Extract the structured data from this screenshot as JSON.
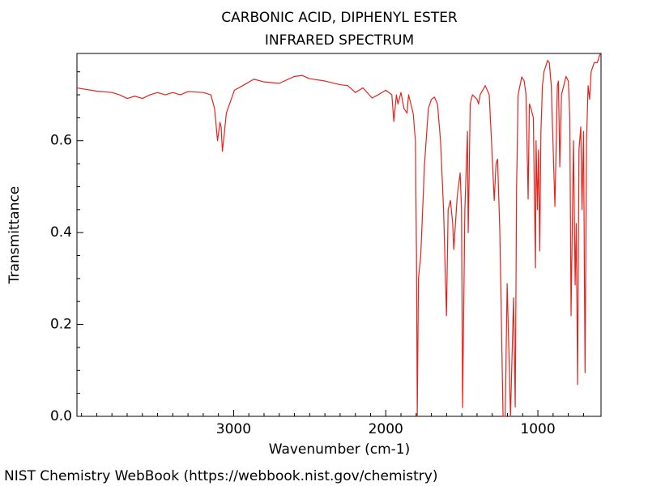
{
  "chart_data": {
    "type": "line",
    "title": "CARBONIC ACID, DIPHENYL ESTER",
    "subtitle": "INFRARED SPECTRUM",
    "x_label": "Wavenumber (cm-1)",
    "y_label": "Transmittance",
    "source": "NIST Chemistry WebBook (https://webbook.nist.gov/chemistry)",
    "color": "#e8221b",
    "xlim": [
      4030,
      585
    ],
    "ylim": [
      0,
      0.79
    ],
    "xticks": [
      3000,
      2000,
      1000
    ],
    "xticks_minor": [
      4000,
      3900,
      3800,
      3700,
      3600,
      3500,
      3400,
      3300,
      3200,
      3100,
      2900,
      2800,
      2700,
      2600,
      2500,
      2400,
      2300,
      2200,
      2100,
      1900,
      1800,
      1700,
      1600,
      1500,
      1400,
      1300,
      1200,
      1100,
      900,
      800,
      700
    ],
    "yticks": [
      {
        "value": 0,
        "label": "0.0"
      },
      0.2,
      0.4,
      0.6
    ],
    "yticks_minor": [
      0.05,
      0.1,
      0.15,
      0.25,
      0.3,
      0.35,
      0.45,
      0.5,
      0.55,
      0.65,
      0.7,
      0.75
    ],
    "x": [
      4030,
      3900,
      3800,
      3750,
      3700,
      3650,
      3600,
      3550,
      3500,
      3450,
      3400,
      3350,
      3300,
      3200,
      3150,
      3125,
      3106,
      3090,
      3082,
      3074,
      3060,
      3048,
      2995,
      2940,
      2867,
      2800,
      2700,
      2600,
      2550,
      2500,
      2400,
      2300,
      2250,
      2200,
      2150,
      2090,
      2050,
      2000,
      1960,
      1947,
      1930,
      1920,
      1900,
      1880,
      1860,
      1850,
      1820,
      1805,
      1798,
      1793,
      1785,
      1770,
      1745,
      1720,
      1700,
      1680,
      1660,
      1640,
      1620,
      1601,
      1590,
      1575,
      1560,
      1553,
      1530,
      1511,
      1502,
      1495,
      1480,
      1463,
      1458,
      1452,
      1445,
      1430,
      1400,
      1390,
      1380,
      1346,
      1320,
      1305,
      1287,
      1275,
      1265,
      1250,
      1229,
      1215,
      1202,
      1195,
      1180,
      1160,
      1149,
      1140,
      1130,
      1106,
      1090,
      1078,
      1064,
      1056,
      1045,
      1030,
      1016,
      1012,
      1003,
      996,
      988,
      980,
      970,
      960,
      936,
      925,
      912,
      888,
      872,
      865,
      856,
      845,
      830,
      815,
      800,
      790,
      782,
      766,
      755,
      748,
      739,
      730,
      718,
      710,
      700,
      690,
      680,
      670,
      660,
      650,
      630,
      610,
      590
    ],
    "values": [
      0.715,
      0.708,
      0.705,
      0.7,
      0.692,
      0.697,
      0.692,
      0.7,
      0.705,
      0.7,
      0.705,
      0.7,
      0.707,
      0.705,
      0.7,
      0.67,
      0.6,
      0.64,
      0.63,
      0.577,
      0.62,
      0.66,
      0.71,
      0.72,
      0.734,
      0.728,
      0.725,
      0.74,
      0.742,
      0.735,
      0.73,
      0.722,
      0.72,
      0.705,
      0.715,
      0.693,
      0.7,
      0.71,
      0.7,
      0.642,
      0.7,
      0.68,
      0.705,
      0.67,
      0.66,
      0.7,
      0.66,
      0.6,
      0.35,
      0.0,
      0.3,
      0.35,
      0.55,
      0.67,
      0.69,
      0.695,
      0.68,
      0.6,
      0.45,
      0.219,
      0.45,
      0.47,
      0.42,
      0.363,
      0.48,
      0.53,
      0.45,
      0.019,
      0.45,
      0.62,
      0.4,
      0.52,
      0.68,
      0.7,
      0.69,
      0.68,
      0.7,
      0.72,
      0.7,
      0.6,
      0.47,
      0.55,
      0.56,
      0.4,
      0.0,
      0.0,
      0.289,
      0.2,
      0.0,
      0.258,
      0.02,
      0.5,
      0.7,
      0.739,
      0.73,
      0.7,
      0.473,
      0.68,
      0.67,
      0.65,
      0.323,
      0.6,
      0.45,
      0.58,
      0.36,
      0.62,
      0.72,
      0.75,
      0.775,
      0.77,
      0.72,
      0.457,
      0.72,
      0.73,
      0.543,
      0.7,
      0.72,
      0.74,
      0.73,
      0.65,
      0.219,
      0.6,
      0.286,
      0.42,
      0.069,
      0.58,
      0.63,
      0.45,
      0.62,
      0.095,
      0.6,
      0.72,
      0.69,
      0.75,
      0.77,
      0.77,
      0.79
    ]
  }
}
